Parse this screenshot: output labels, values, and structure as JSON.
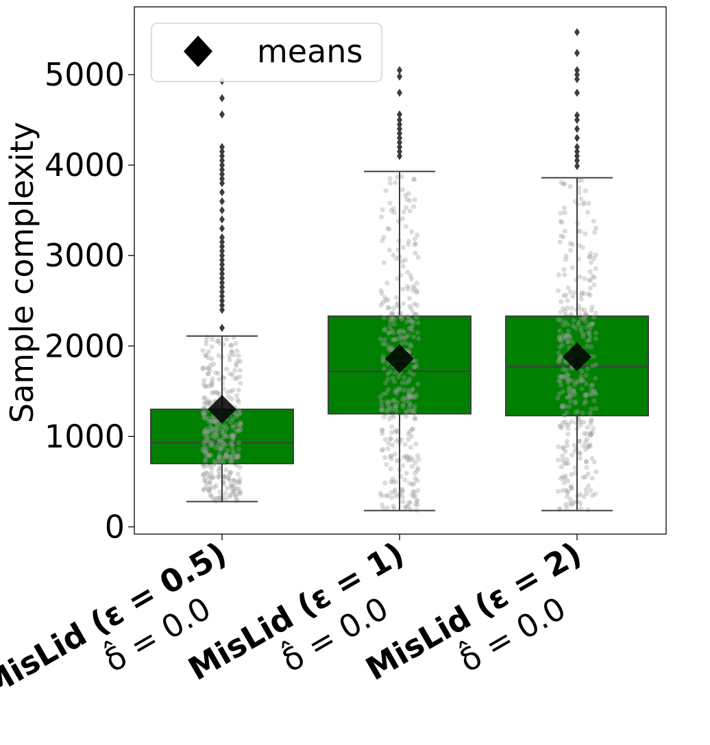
{
  "chart_data": {
    "type": "box",
    "ylabel": "Sample complexity",
    "xlabel": "",
    "ylim": [
      -80,
      5750
    ],
    "yticks": [
      0,
      1000,
      2000,
      3000,
      4000,
      5000
    ],
    "ytick_labels": [
      "0",
      "1000",
      "2000",
      "3000",
      "4000",
      "5000"
    ],
    "legend": {
      "position": "top-left",
      "entries": [
        {
          "marker": "diamond",
          "label": "means"
        }
      ]
    },
    "box_color": "#008000",
    "mean_color": "#000000",
    "categories": [
      {
        "name": "MisLid",
        "eps_label": "(ε = ",
        "eps_value": "0.5",
        "close": ")",
        "delta_label": "δ̂ = 0.0",
        "whisker_low": 280,
        "q1": 700,
        "median": 930,
        "q3": 1300,
        "whisker_high": 2110,
        "mean": 1300,
        "outliers": [
          2200,
          2400,
          2450,
          2500,
          2550,
          2600,
          2650,
          2700,
          2750,
          2800,
          2850,
          2900,
          2950,
          3000,
          3050,
          3100,
          3150,
          3200,
          3300,
          3400,
          3500,
          3600,
          3700,
          3800,
          3850,
          3900,
          3950,
          4000,
          4050,
          4100,
          4150,
          4200,
          4560,
          4740,
          4930
        ]
      },
      {
        "name": "MisLid",
        "eps_label": "(ε = ",
        "eps_value": "1",
        "close": ")",
        "delta_label": "δ̂ = 0.0",
        "whisker_low": 180,
        "q1": 1250,
        "median": 1720,
        "q3": 2330,
        "whisker_high": 3930,
        "mean": 1860,
        "outliers": [
          4100,
          4150,
          4200,
          4250,
          4300,
          4350,
          4400,
          4450,
          4500,
          4560,
          4800,
          4980,
          5050
        ]
      },
      {
        "name": "MisLid",
        "eps_label": "(ε = ",
        "eps_value": "2",
        "close": ")",
        "delta_label": "δ̂ = 0.0",
        "whisker_low": 180,
        "q1": 1230,
        "median": 1770,
        "q3": 2330,
        "whisker_high": 3860,
        "mean": 1880,
        "outliers": [
          3990,
          4050,
          4100,
          4150,
          4200,
          4300,
          4400,
          4500,
          4550,
          4800,
          4950,
          5000,
          5050,
          5240,
          5470
        ]
      }
    ]
  }
}
